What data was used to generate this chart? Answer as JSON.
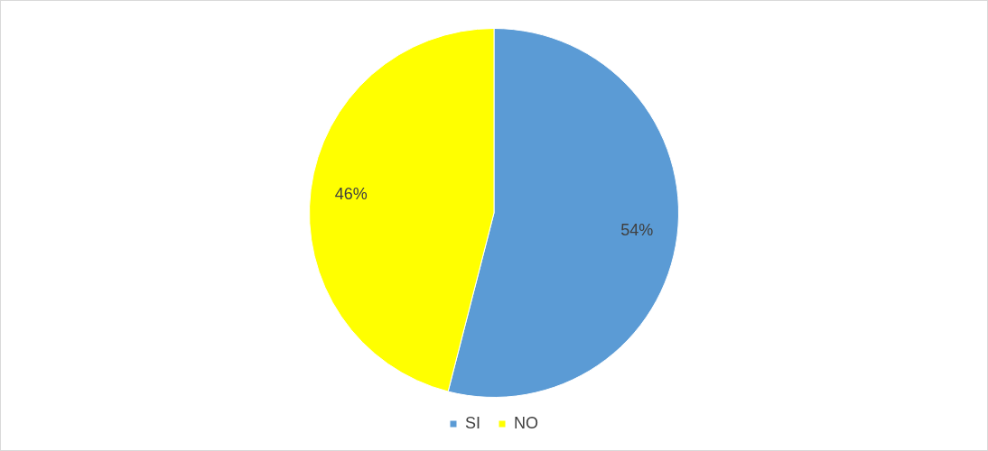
{
  "chart_data": {
    "type": "pie",
    "categories": [
      "SI",
      "NO"
    ],
    "values": [
      54,
      46
    ],
    "colors": [
      "#5b9bd5",
      "#ffff00"
    ],
    "value_labels": [
      "54%",
      "46%"
    ],
    "legend": "bottom"
  }
}
